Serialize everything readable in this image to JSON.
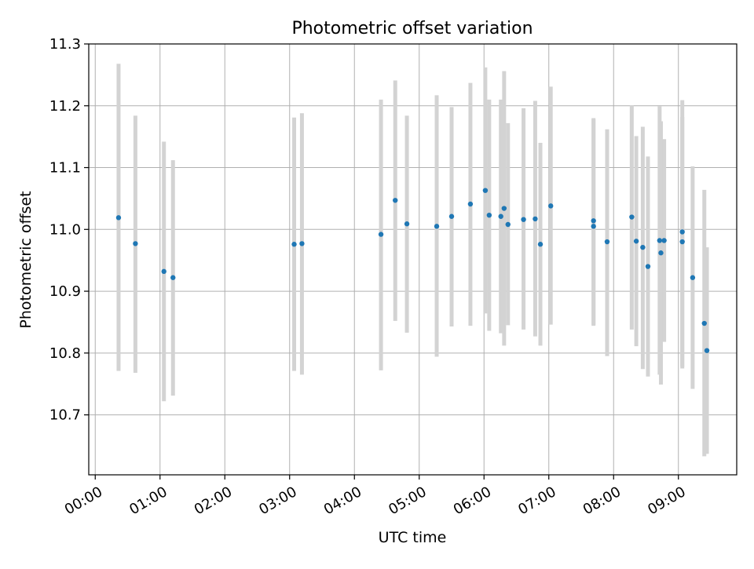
{
  "chart_data": {
    "type": "scatter",
    "title": "Photometric offset variation",
    "xlabel": "UTC time",
    "ylabel": "Photometric offset",
    "xlim_hours": [
      -0.1,
      9.9
    ],
    "ylim": [
      10.603,
      11.3
    ],
    "grid": true,
    "x_ticks": [
      {
        "hour": 0,
        "label": "00:00"
      },
      {
        "hour": 1,
        "label": "01:00"
      },
      {
        "hour": 2,
        "label": "02:00"
      },
      {
        "hour": 3,
        "label": "03:00"
      },
      {
        "hour": 4,
        "label": "04:00"
      },
      {
        "hour": 5,
        "label": "05:00"
      },
      {
        "hour": 6,
        "label": "06:00"
      },
      {
        "hour": 7,
        "label": "07:00"
      },
      {
        "hour": 8,
        "label": "08:00"
      },
      {
        "hour": 9,
        "label": "09:00"
      }
    ],
    "y_ticks": [
      {
        "value": 10.7,
        "label": "10.7"
      },
      {
        "value": 10.8,
        "label": "10.8"
      },
      {
        "value": 10.9,
        "label": "10.9"
      },
      {
        "value": 11.0,
        "label": "11.0"
      },
      {
        "value": 11.1,
        "label": "11.1"
      },
      {
        "value": 11.2,
        "label": "11.2"
      },
      {
        "value": 11.3,
        "label": "11.3"
      }
    ],
    "colors": {
      "point": "#1f77b4",
      "errorbar": "#d3d3d3",
      "grid": "#b0b0b0",
      "axis": "#000000"
    },
    "points": [
      {
        "x": 0.36,
        "y": 11.019,
        "ylow": 10.771,
        "yhigh": 11.268
      },
      {
        "x": 0.62,
        "y": 10.977,
        "ylow": 10.768,
        "yhigh": 11.184
      },
      {
        "x": 1.06,
        "y": 10.932,
        "ylow": 10.722,
        "yhigh": 11.142
      },
      {
        "x": 1.2,
        "y": 10.922,
        "ylow": 10.731,
        "yhigh": 11.112
      },
      {
        "x": 3.07,
        "y": 10.976,
        "ylow": 10.771,
        "yhigh": 11.181
      },
      {
        "x": 3.19,
        "y": 10.977,
        "ylow": 10.765,
        "yhigh": 11.188
      },
      {
        "x": 4.41,
        "y": 10.992,
        "ylow": 10.772,
        "yhigh": 11.21
      },
      {
        "x": 4.63,
        "y": 11.047,
        "ylow": 10.852,
        "yhigh": 11.241
      },
      {
        "x": 4.81,
        "y": 11.009,
        "ylow": 10.833,
        "yhigh": 11.184
      },
      {
        "x": 5.27,
        "y": 11.005,
        "ylow": 10.794,
        "yhigh": 11.217
      },
      {
        "x": 5.5,
        "y": 11.021,
        "ylow": 10.843,
        "yhigh": 11.198
      },
      {
        "x": 5.79,
        "y": 11.041,
        "ylow": 10.844,
        "yhigh": 11.237
      },
      {
        "x": 6.02,
        "y": 11.063,
        "ylow": 10.864,
        "yhigh": 11.262
      },
      {
        "x": 6.08,
        "y": 11.023,
        "ylow": 10.836,
        "yhigh": 11.21
      },
      {
        "x": 6.26,
        "y": 11.021,
        "ylow": 10.832,
        "yhigh": 11.21
      },
      {
        "x": 6.31,
        "y": 11.034,
        "ylow": 10.812,
        "yhigh": 11.256
      },
      {
        "x": 6.37,
        "y": 11.008,
        "ylow": 10.845,
        "yhigh": 11.172
      },
      {
        "x": 6.61,
        "y": 11.016,
        "ylow": 10.838,
        "yhigh": 11.196
      },
      {
        "x": 6.79,
        "y": 11.017,
        "ylow": 10.827,
        "yhigh": 11.208
      },
      {
        "x": 6.87,
        "y": 10.976,
        "ylow": 10.812,
        "yhigh": 11.14
      },
      {
        "x": 7.03,
        "y": 11.038,
        "ylow": 10.846,
        "yhigh": 11.231
      },
      {
        "x": 7.69,
        "y": 11.005,
        "ylow": 10.844,
        "yhigh": 11.18
      },
      {
        "x": 7.69,
        "y": 11.014,
        "ylow": 10.846,
        "yhigh": 11.178
      },
      {
        "x": 7.9,
        "y": 10.98,
        "ylow": 10.795,
        "yhigh": 11.162
      },
      {
        "x": 8.28,
        "y": 11.02,
        "ylow": 10.838,
        "yhigh": 11.201
      },
      {
        "x": 8.35,
        "y": 10.981,
        "ylow": 10.811,
        "yhigh": 11.151
      },
      {
        "x": 8.45,
        "y": 10.971,
        "ylow": 10.774,
        "yhigh": 11.166
      },
      {
        "x": 8.53,
        "y": 10.94,
        "ylow": 10.762,
        "yhigh": 11.118
      },
      {
        "x": 8.71,
        "y": 10.982,
        "ylow": 10.765,
        "yhigh": 11.199
      },
      {
        "x": 8.73,
        "y": 10.962,
        "ylow": 10.749,
        "yhigh": 11.175
      },
      {
        "x": 8.78,
        "y": 10.982,
        "ylow": 10.818,
        "yhigh": 11.146
      },
      {
        "x": 9.06,
        "y": 10.996,
        "ylow": 10.778,
        "yhigh": 11.209
      },
      {
        "x": 9.06,
        "y": 10.98,
        "ylow": 10.775,
        "yhigh": 11.182
      },
      {
        "x": 9.22,
        "y": 10.922,
        "ylow": 10.742,
        "yhigh": 11.102
      },
      {
        "x": 9.4,
        "y": 10.848,
        "ylow": 10.633,
        "yhigh": 11.064
      },
      {
        "x": 9.44,
        "y": 10.804,
        "ylow": 10.637,
        "yhigh": 10.971
      }
    ]
  }
}
